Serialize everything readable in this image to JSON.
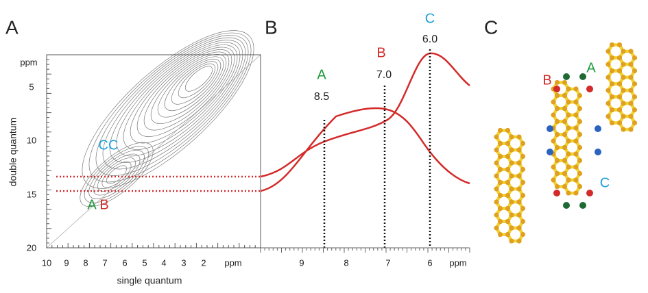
{
  "panels": [
    {
      "label": "A",
      "x_axis": {
        "label": "single quantum",
        "ticks": [
          "10",
          "9",
          "8",
          "7",
          "6",
          "5",
          "4",
          "3",
          "2",
          "ppm"
        ]
      },
      "y_axis": {
        "label": "double quantum",
        "ticks": [
          "ppm",
          "5",
          "10",
          "15",
          "20"
        ]
      },
      "annotations": [
        "CC",
        "A",
        "B"
      ]
    },
    {
      "label": "B",
      "x_axis": {
        "ticks": [
          "9",
          "8",
          "7",
          "6",
          "ppm"
        ]
      },
      "peaks": [
        {
          "site": "A",
          "shift": "8.5"
        },
        {
          "site": "B",
          "shift": "7.0"
        },
        {
          "site": "C",
          "shift": "6.0"
        }
      ]
    },
    {
      "label": "C",
      "sites": [
        "B",
        "A",
        "C"
      ]
    }
  ]
}
